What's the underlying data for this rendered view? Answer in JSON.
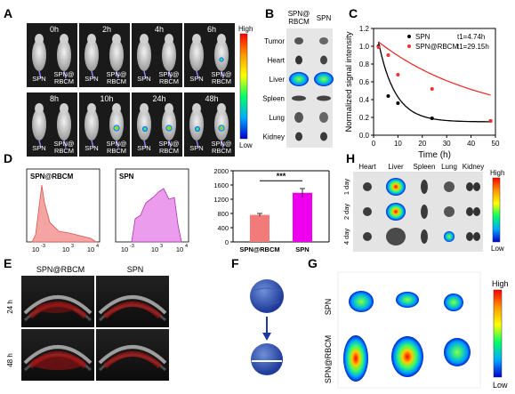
{
  "panels": {
    "A": "A",
    "B": "B",
    "C": "C",
    "D": "D",
    "E": "E",
    "F": "F",
    "G": "G",
    "H": "H"
  },
  "panelA": {
    "times_top": [
      "0h",
      "2h",
      "4h",
      "6h"
    ],
    "times_bottom": [
      "8h",
      "10h",
      "24h",
      "48h"
    ],
    "label_spn": "SPN",
    "label_rbcm_line1": "SPN@",
    "label_rbcm_line2": "RBCM",
    "scale_high": "High",
    "scale_low": "Low"
  },
  "panelB": {
    "col1_line1": "SPN@",
    "col1_line2": "RBCM",
    "col2": "SPN",
    "organs": [
      "Tumor",
      "Heart",
      "Liver",
      "Spleen",
      "Lung",
      "Kidney"
    ]
  },
  "panelD": {
    "hist1_title": "SPN@RBCM",
    "hist2_title": "SPN",
    "hist_ticks": [
      "10",
      "10",
      "10"
    ],
    "hist_tick_exp": [
      "-3",
      "3",
      "4"
    ],
    "significance": "***"
  },
  "panelE": {
    "col1": "SPN@RBCM",
    "col2": "SPN",
    "row1": "24 h",
    "row2": "48 h"
  },
  "panelG": {
    "row1": "SPN",
    "row2": "SPN@RBCM",
    "scale_high": "High",
    "scale_low": "Low"
  },
  "panelH": {
    "organs": [
      "Heart",
      "Liver",
      "Spleen",
      "Lung",
      "Kidney"
    ],
    "days": [
      "1 day",
      "2 day",
      "4 day"
    ],
    "scale_high": "High",
    "scale_low": "Low"
  },
  "colors": {
    "spn_curve": "#000000",
    "rbcm_curve": "#e8342e",
    "bar_rbcm": "#f07b78",
    "bar_spn": "#ee00ee",
    "hist1_fill": "#f4a5a3",
    "hist2_fill": "#ec9cec"
  },
  "chart_data": [
    {
      "type": "scatter",
      "panel": "C",
      "xlabel": "Time (h)",
      "ylabel": "Normalized signal intensity",
      "xlim": [
        0,
        50
      ],
      "ylim": [
        0.0,
        1.2
      ],
      "xticks": [
        0,
        10,
        20,
        30,
        40,
        50
      ],
      "yticks": [
        0.0,
        0.2,
        0.4,
        0.6,
        0.8,
        1.0,
        1.2
      ],
      "legend_position": "top-right",
      "series": [
        {
          "name": "SPN",
          "annotation": "t1=4.74h",
          "x": [
            2,
            6,
            10,
            24,
            48
          ],
          "y": [
            1.0,
            0.44,
            0.36,
            0.19,
            0.16
          ],
          "fit_halflife_h": 4.74
        },
        {
          "name": "SPN@RBCM",
          "annotation": "t1=29.15h",
          "x": [
            2,
            6,
            10,
            24,
            48
          ],
          "y": [
            0.99,
            0.9,
            0.68,
            0.52,
            0.16
          ],
          "fit_halflife_h": 29.15
        }
      ]
    },
    {
      "type": "bar",
      "panel": "D",
      "categories": [
        "SPN@RBCM",
        "SPN"
      ],
      "values": [
        760,
        1380
      ],
      "errors": [
        40,
        120
      ],
      "ylim": [
        0,
        2000
      ],
      "yticks": [
        0,
        400,
        800,
        1200,
        1600,
        2000
      ],
      "significance": "***"
    }
  ]
}
